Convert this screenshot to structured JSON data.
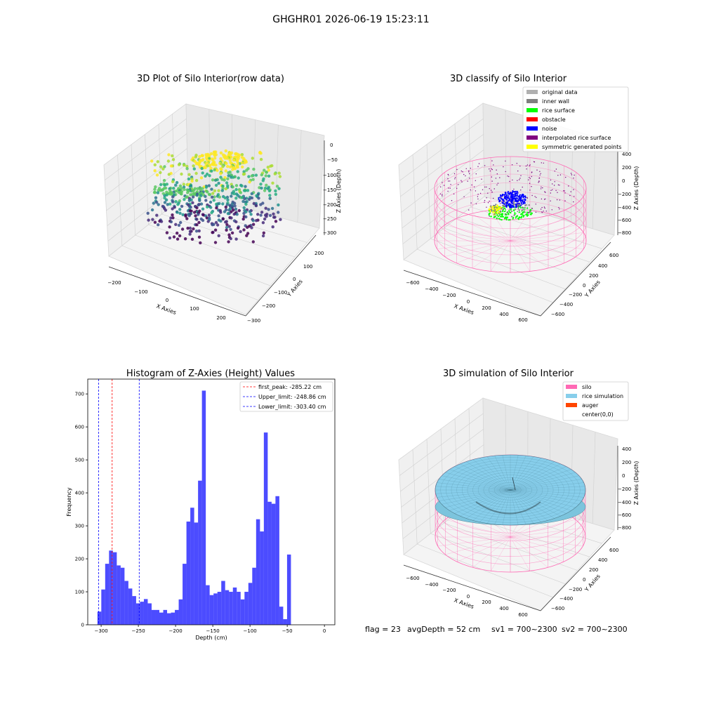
{
  "suptitle": "GHGHR01 2026-06-19 15:23:11",
  "panels": {
    "raw": {
      "title": "3D Plot of Silo Interior(row data)",
      "xlabel": "X Axies",
      "ylabel": "Y Axies",
      "zlabel": "Z Axies (Depth)",
      "x_ticks": [
        "−200",
        "−100",
        "0",
        "100",
        "200"
      ],
      "y_ticks": [
        "200",
        "100",
        "0",
        "−100",
        "−200",
        "−300"
      ],
      "z_ticks": [
        "0",
        "−50",
        "−100",
        "−150",
        "−200",
        "−250",
        "−300"
      ]
    },
    "classify": {
      "title": "3D classify of Silo Interior",
      "xlabel": "X Axies",
      "ylabel": "Y Axies",
      "zlabel": "Z Axies (Depth)",
      "x_ticks": [
        "−600",
        "−400",
        "−200",
        "0",
        "200",
        "400",
        "600"
      ],
      "y_ticks": [
        "600",
        "400",
        "200",
        "0",
        "−200",
        "−400",
        "−600"
      ],
      "z_ticks": [
        "400",
        "200",
        "0",
        "−200",
        "−400",
        "−600",
        "−800"
      ],
      "legend": [
        {
          "label": "original data",
          "color": "#b0b0b0"
        },
        {
          "label": "inner wall",
          "color": "#808080"
        },
        {
          "label": "rice surface",
          "color": "#00ff00"
        },
        {
          "label": "obstacle",
          "color": "#ff0000"
        },
        {
          "label": "noise",
          "color": "#0000ff"
        },
        {
          "label": "interpolated rice surface",
          "color": "#800080"
        },
        {
          "label": "symmetric generated points",
          "color": "#ffff00"
        }
      ]
    },
    "simulation": {
      "title": "3D simulation of Silo Interior",
      "xlabel": "X Axies",
      "ylabel": "Y Axies",
      "zlabel": "Z Axies (Depth)",
      "x_ticks": [
        "−600",
        "−400",
        "−200",
        "0",
        "200",
        "400",
        "600"
      ],
      "y_ticks": [
        "600",
        "400",
        "200",
        "0",
        "−200",
        "−400",
        "−600"
      ],
      "z_ticks": [
        "400",
        "200",
        "0",
        "−200",
        "−400",
        "−600",
        "−800"
      ],
      "legend": [
        {
          "label": "silo",
          "color": "#ff69b4"
        },
        {
          "label": "rice simulation",
          "color": "#87ceeb"
        },
        {
          "label": "auger",
          "color": "#ff4500"
        },
        {
          "label": "center(0,0)",
          "color": ""
        }
      ]
    }
  },
  "footer": {
    "flag": "flag = 23",
    "avg_depth": "avgDepth = 52 cm",
    "sv1": "sv1 = 700~2300",
    "sv2": "sv2 = 700~2300"
  },
  "chart_data": {
    "type": "bar",
    "title": "Histogram of Z-Axies (Height) Values",
    "xlabel": "Depth (cm)",
    "ylabel": "Frequency",
    "xlim": [
      -318,
      14
    ],
    "ylim": [
      0,
      745
    ],
    "bin_start": -305,
    "bin_width": 5.2,
    "values": [
      40,
      107,
      185,
      225,
      220,
      180,
      173,
      133,
      110,
      87,
      65,
      70,
      78,
      65,
      45,
      45,
      37,
      45,
      35,
      37,
      45,
      77,
      185,
      313,
      355,
      310,
      437,
      710,
      120,
      90,
      95,
      100,
      133,
      105,
      100,
      113,
      100,
      77,
      100,
      127,
      173,
      320,
      283,
      583,
      373,
      367,
      390,
      55,
      17,
      213
    ],
    "bar_color": "#0000ff",
    "x_ticks": [
      -300,
      -250,
      -200,
      -150,
      -100,
      -50,
      0
    ],
    "x_tick_labels": [
      "−300",
      "−250",
      "−200",
      "−150",
      "−100",
      "−50",
      "0"
    ],
    "y_ticks": [
      0,
      100,
      200,
      300,
      400,
      500,
      600,
      700
    ],
    "y_tick_labels": [
      "0",
      "100",
      "200",
      "300",
      "400",
      "500",
      "600",
      "700"
    ],
    "lines": [
      {
        "label": "first_peak: -285.22 cm",
        "x": -285.22,
        "color": "#ff0000"
      },
      {
        "label": "Upper_limit: -248.86 cm",
        "x": -248.86,
        "color": "#0000ff"
      },
      {
        "label": "Lower_limit: -303.40 cm",
        "x": -303.4,
        "color": "#0000ff"
      }
    ],
    "legend_position": "top-right"
  }
}
